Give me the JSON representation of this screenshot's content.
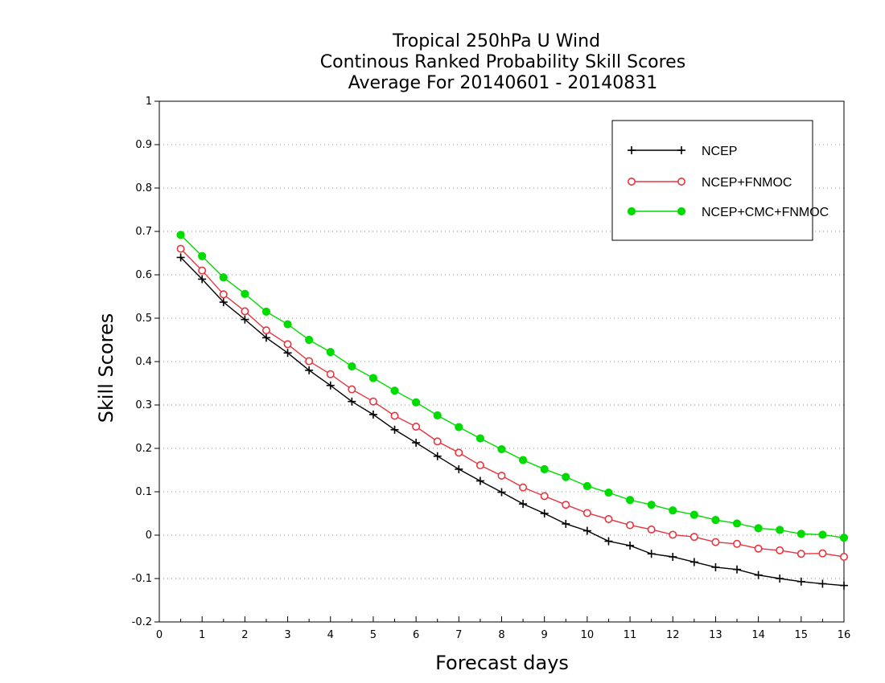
{
  "chart_data": {
    "type": "line",
    "title_lines": [
      "Tropical 250hPa U Wind",
      "Continous Ranked Probability Skill Scores",
      "Average For 20140601 - 20140831"
    ],
    "xlabel": "Forecast days",
    "ylabel": "Skill Scores",
    "xlim": [
      0,
      16
    ],
    "ylim": [
      -0.2,
      1
    ],
    "xticks": [
      0,
      1,
      2,
      3,
      4,
      5,
      6,
      7,
      8,
      9,
      10,
      11,
      12,
      13,
      14,
      15,
      16
    ],
    "yticks": [
      -0.2,
      -0.1,
      0,
      0.1,
      0.2,
      0.3,
      0.4,
      0.5,
      0.6,
      0.7,
      0.8,
      0.9,
      1
    ],
    "ytick_labels": [
      "-0.2",
      "-0.1",
      "0",
      "0.1",
      "0.2",
      "0.3",
      "0.4",
      "0.5",
      "0.6",
      "0.7",
      "0.8",
      "0.9",
      "1"
    ],
    "grid": "horizontal dotted",
    "legend_position": "top-right",
    "x": [
      0.5,
      1,
      1.5,
      2,
      2.5,
      3,
      3.5,
      4,
      4.5,
      5,
      5.5,
      6,
      6.5,
      7,
      7.5,
      8,
      8.5,
      9,
      9.5,
      10,
      10.5,
      11,
      11.5,
      12,
      12.5,
      13,
      13.5,
      14,
      14.5,
      15,
      15.5,
      16
    ],
    "series": [
      {
        "name": "NCEP",
        "color": "#000000",
        "marker": "plus",
        "values": [
          0.64,
          0.59,
          0.537,
          0.497,
          0.455,
          0.42,
          0.38,
          0.345,
          0.308,
          0.278,
          0.243,
          0.213,
          0.182,
          0.152,
          0.125,
          0.099,
          0.072,
          0.05,
          0.026,
          0.01,
          -0.014,
          -0.024,
          -0.043,
          -0.05,
          -0.062,
          -0.074,
          -0.079,
          -0.092,
          -0.1,
          -0.107,
          -0.112,
          -0.116
        ]
      },
      {
        "name": "NCEP+FNMOC",
        "color": "#e8343c",
        "marker": "open-circle",
        "values": [
          0.66,
          0.61,
          0.555,
          0.516,
          0.472,
          0.44,
          0.401,
          0.371,
          0.336,
          0.308,
          0.275,
          0.25,
          0.216,
          0.19,
          0.161,
          0.137,
          0.11,
          0.09,
          0.07,
          0.051,
          0.037,
          0.023,
          0.013,
          0.001,
          -0.004,
          -0.016,
          -0.02,
          -0.031,
          -0.035,
          -0.043,
          -0.042,
          -0.05
        ]
      },
      {
        "name": "NCEP+CMC+FNMOC",
        "color": "#00dc00",
        "marker": "filled-circle",
        "values": [
          0.692,
          0.643,
          0.594,
          0.556,
          0.515,
          0.486,
          0.45,
          0.422,
          0.389,
          0.362,
          0.333,
          0.306,
          0.276,
          0.249,
          0.223,
          0.198,
          0.173,
          0.152,
          0.134,
          0.113,
          0.098,
          0.081,
          0.07,
          0.057,
          0.047,
          0.035,
          0.027,
          0.016,
          0.012,
          0.003,
          0.001,
          -0.006
        ]
      }
    ]
  }
}
